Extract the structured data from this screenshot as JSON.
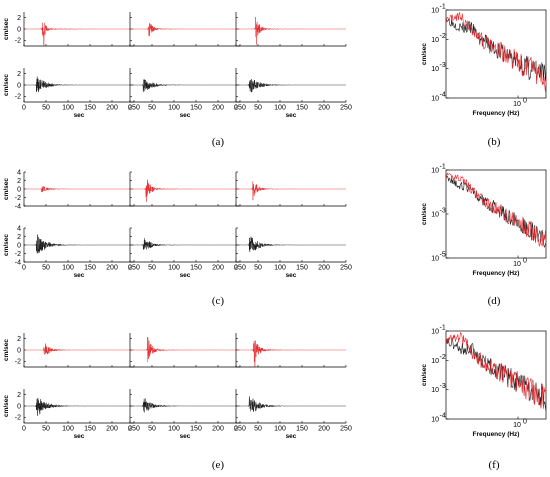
{
  "colors": {
    "red": "#e8262a",
    "black": "#1a1a1a"
  },
  "labels": {
    "time_xlabel": "sec",
    "time_ylabel": "cm/sec",
    "spec_xlabel": "Frequency (Hz)",
    "spec_ylabel": "cm/sec",
    "spec_xtick": "10",
    "spec_xtick_exp": "0"
  },
  "panels": [
    {
      "id": "a",
      "label": "(a)"
    },
    {
      "id": "b",
      "label": "(b)"
    },
    {
      "id": "c",
      "label": "(c)"
    },
    {
      "id": "d",
      "label": "(d)"
    },
    {
      "id": "e",
      "label": "(e)"
    },
    {
      "id": "f",
      "label": "(f)"
    }
  ],
  "chart_data": {
    "type": "line",
    "time_axis": {
      "xlim": [
        0,
        250
      ],
      "xticks": [
        0,
        50,
        100,
        150,
        200,
        250
      ]
    },
    "rows": [
      {
        "yticks_top": [
          -2,
          0,
          2
        ],
        "yticks_bottom": [
          -2,
          0,
          2
        ],
        "ylim": [
          -3,
          3
        ],
        "time_series": [
          {
            "col": 1,
            "color": "red",
            "pos": "top",
            "onset": 42,
            "peak": 3.0,
            "decay": 5,
            "spike": true
          },
          {
            "col": 2,
            "color": "red",
            "pos": "top",
            "onset": 42,
            "peak": 2.0,
            "decay": 7,
            "spike": false
          },
          {
            "col": 3,
            "color": "red",
            "pos": "top",
            "onset": 44,
            "peak": 2.6,
            "decay": 8,
            "spike": true
          },
          {
            "col": 1,
            "color": "black",
            "pos": "bottom",
            "onset": 28,
            "peak": 1.8,
            "decay": 18,
            "spike": false
          },
          {
            "col": 2,
            "color": "black",
            "pos": "bottom",
            "onset": 30,
            "peak": 1.8,
            "decay": 16,
            "spike": false
          },
          {
            "col": 3,
            "color": "black",
            "pos": "bottom",
            "onset": 30,
            "peak": 1.8,
            "decay": 18,
            "spike": false
          }
        ],
        "spectrum": {
          "yticks_exp": [
            -1,
            -2,
            -3,
            -4
          ],
          "ylim_exp": [
            -4,
            -1
          ]
        }
      },
      {
        "yticks_top": [
          -4,
          -2,
          0,
          2,
          4
        ],
        "yticks_bottom": [
          -4,
          -2,
          0,
          2,
          4
        ],
        "ylim": [
          -4,
          4
        ],
        "time_series": [
          {
            "col": 1,
            "color": "red",
            "pos": "top",
            "onset": 40,
            "peak": 1.0,
            "decay": 14,
            "spike": false
          },
          {
            "col": 2,
            "color": "red",
            "pos": "top",
            "onset": 36,
            "peak": 3.8,
            "decay": 8,
            "spike": false
          },
          {
            "col": 3,
            "color": "red",
            "pos": "top",
            "onset": 38,
            "peak": 3.0,
            "decay": 8,
            "spike": false
          },
          {
            "col": 1,
            "color": "black",
            "pos": "bottom",
            "onset": 28,
            "peak": 3.0,
            "decay": 18,
            "spike": false
          },
          {
            "col": 2,
            "color": "black",
            "pos": "bottom",
            "onset": 30,
            "peak": 2.2,
            "decay": 14,
            "spike": false
          },
          {
            "col": 3,
            "color": "black",
            "pos": "bottom",
            "onset": 30,
            "peak": 3.0,
            "decay": 16,
            "spike": false
          }
        ],
        "spectrum": {
          "yticks_exp": [
            -1,
            -3,
            -5
          ],
          "ylim_exp": [
            -5,
            -1
          ]
        }
      },
      {
        "yticks_top": [
          -2,
          0,
          2
        ],
        "yticks_bottom": [
          -2,
          0,
          2
        ],
        "ylim": [
          -3,
          3
        ],
        "time_series": [
          {
            "col": 1,
            "color": "red",
            "pos": "top",
            "onset": 45,
            "peak": 1.5,
            "decay": 12,
            "spike": false
          },
          {
            "col": 2,
            "color": "red",
            "pos": "top",
            "onset": 40,
            "peak": 2.8,
            "decay": 8,
            "spike": false
          },
          {
            "col": 3,
            "color": "red",
            "pos": "top",
            "onset": 40,
            "peak": 2.8,
            "decay": 9,
            "spike": true
          },
          {
            "col": 1,
            "color": "black",
            "pos": "bottom",
            "onset": 28,
            "peak": 2.3,
            "decay": 18,
            "spike": false
          },
          {
            "col": 2,
            "color": "black",
            "pos": "bottom",
            "onset": 30,
            "peak": 1.8,
            "decay": 16,
            "spike": false
          },
          {
            "col": 3,
            "color": "black",
            "pos": "bottom",
            "onset": 30,
            "peak": 2.0,
            "decay": 18,
            "spike": false
          }
        ],
        "spectrum": {
          "yticks_exp": [
            -1,
            -2,
            -3,
            -4
          ],
          "ylim_exp": [
            -4,
            -1
          ]
        }
      }
    ]
  }
}
